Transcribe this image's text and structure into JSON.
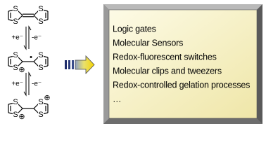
{
  "molecules": [
    {
      "atoms": [
        "S",
        "S",
        "S",
        "S"
      ],
      "charges": []
    },
    {
      "atoms": [
        "S",
        "S",
        "S",
        "S"
      ],
      "charges": [
        "⊕",
        "•"
      ]
    },
    {
      "atoms": [
        "S",
        "S",
        "S",
        "S"
      ],
      "charges": [
        "⊕",
        "⊕"
      ]
    }
  ],
  "steps": [
    {
      "reduce": "+e⁻",
      "oxidize": "-e⁻"
    },
    {
      "reduce": "+e⁻",
      "oxidize": "-e⁻"
    }
  ],
  "applications": [
    "Logic gates",
    "Molecular Sensors",
    "Redox-fluorescent switches",
    "Molecular clips and tweezers",
    "Redox-controlled gelation processes",
    "…"
  ]
}
